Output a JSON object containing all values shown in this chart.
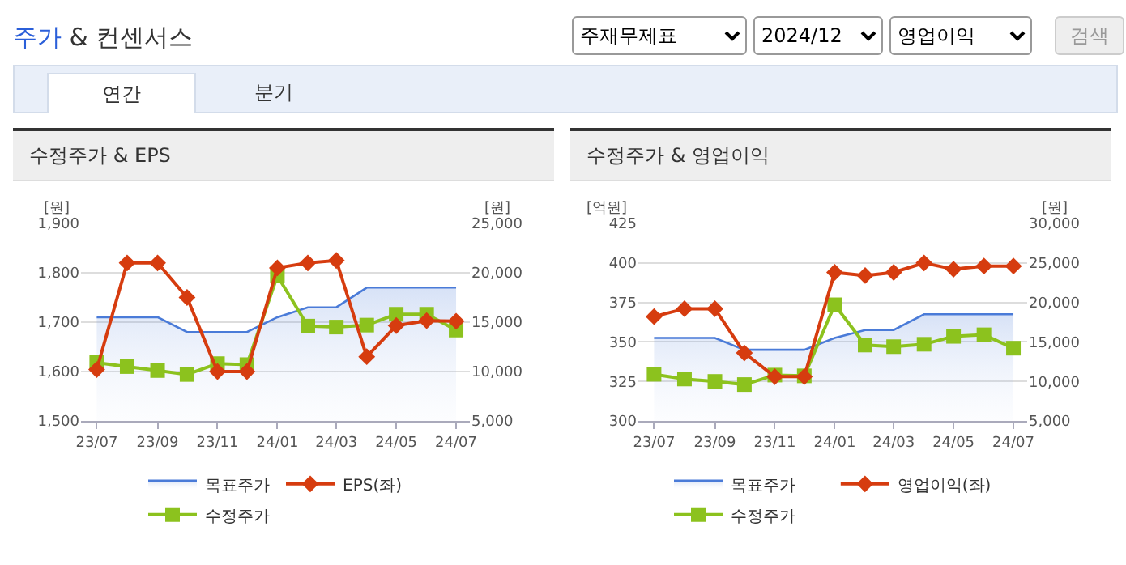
{
  "chart_data": [
    {
      "type": "line",
      "title": "수정주가 & EPS",
      "ylabel": "[원]",
      "y2label": "[원]",
      "annotations": [
        "주가 & 컨센서스",
        "주재무제표",
        "2024/12",
        "영업이익",
        "검색",
        "연간",
        "분기"
      ],
      "x": [
        "2023-07",
        "2023-08",
        "2023-09",
        "2023-10",
        "2023-11",
        "2023-12",
        "2024-01",
        "2024-02",
        "2024-03",
        "2024-04",
        "2024-05",
        "2024-06",
        "2024-07"
      ],
      "series": [
        {
          "name": "목표주가",
          "type": "area",
          "axis": "y2",
          "color": "#4a7bd8",
          "marker": "none",
          "values": [
            15500,
            15500,
            15500,
            14000,
            14000,
            14000,
            15500,
            16500,
            16500,
            18500,
            18500,
            18500,
            18500
          ]
        },
        {
          "name": "EPS(좌)",
          "type": "line",
          "color": "#d63c0f",
          "marker": "diamond",
          "values": [
            1604,
            1820,
            1820,
            1750,
            1600,
            1600,
            1810,
            1820,
            1825,
            1630,
            1693,
            1703,
            1702
          ]
        },
        {
          "name": "수정주가",
          "type": "line",
          "axis": "y2",
          "color": "#8cc21e",
          "marker": "square",
          "values": [
            10900,
            10500,
            10100,
            9700,
            10800,
            10700,
            19700,
            14600,
            14500,
            14700,
            15800,
            15800,
            14200
          ]
        }
      ],
      "xlim": [
        "2023-06-15",
        "2024-07-15"
      ],
      "xticks": [
        {
          "value": "2023-07",
          "label": "23/07"
        },
        {
          "value": "2023-09",
          "label": "23/09"
        },
        {
          "value": "2023-11",
          "label": "23/11"
        },
        {
          "value": "2024-01",
          "label": "24/01"
        },
        {
          "value": "2024-03",
          "label": "24/03"
        },
        {
          "value": "2024-05",
          "label": "24/05"
        },
        {
          "value": "2024-07",
          "label": "24/07"
        }
      ],
      "ylim": [
        1500,
        1900
      ],
      "yticks": [
        {
          "value": 1500,
          "label": "1,500"
        },
        {
          "value": 1600,
          "label": "1,600"
        },
        {
          "value": 1700,
          "label": "1,700"
        },
        {
          "value": 1800,
          "label": "1,800"
        },
        {
          "value": 1900,
          "label": "1,900"
        }
      ],
      "y2lim": [
        5000,
        25000
      ],
      "y2ticks": [
        {
          "value": 5000,
          "label": "5,000"
        },
        {
          "value": 10000,
          "label": "10,000"
        },
        {
          "value": 15000,
          "label": "15,000"
        },
        {
          "value": 20000,
          "label": "20,000"
        },
        {
          "value": 25000,
          "label": "25,000"
        }
      ],
      "grid": "y",
      "legend": "bottom"
    },
    {
      "type": "line",
      "title": "수정주가 & 영업이익",
      "ylabel": "[억원]",
      "y2label": "[원]",
      "x": [
        "2023-07",
        "2023-08",
        "2023-09",
        "2023-10",
        "2023-11",
        "2023-12",
        "2024-01",
        "2024-02",
        "2024-03",
        "2024-04",
        "2024-05",
        "2024-06",
        "2024-07"
      ],
      "series": [
        {
          "name": "목표주가",
          "type": "area",
          "axis": "y2",
          "color": "#4a7bd8",
          "marker": "none",
          "values": [
            15500,
            15500,
            15500,
            14000,
            14000,
            14000,
            15500,
            16500,
            16500,
            18500,
            18500,
            18500,
            18500
          ]
        },
        {
          "name": "영업이익(좌)",
          "type": "line",
          "color": "#d63c0f",
          "marker": "diamond",
          "values": [
            366,
            371,
            371,
            343,
            328,
            328,
            394,
            392,
            394,
            400,
            396,
            398,
            398
          ]
        },
        {
          "name": "수정주가",
          "type": "line",
          "axis": "y2",
          "color": "#8cc21e",
          "marker": "square",
          "values": [
            10900,
            10300,
            10000,
            9600,
            10800,
            10700,
            19700,
            14600,
            14400,
            14700,
            15700,
            15900,
            14200
          ]
        }
      ],
      "xlim": [
        "2023-06-15",
        "2024-07-15"
      ],
      "xticks": [
        {
          "value": "2023-07",
          "label": "23/07"
        },
        {
          "value": "2023-09",
          "label": "23/09"
        },
        {
          "value": "2023-11",
          "label": "23/11"
        },
        {
          "value": "2024-01",
          "label": "24/01"
        },
        {
          "value": "2024-03",
          "label": "24/03"
        },
        {
          "value": "2024-05",
          "label": "24/05"
        },
        {
          "value": "2024-07",
          "label": "24/07"
        }
      ],
      "ylim": [
        300,
        425
      ],
      "yticks": [
        300,
        325,
        350,
        375,
        400,
        425
      ],
      "y2lim": [
        5000,
        30000
      ],
      "y2ticks": [
        {
          "value": 5000,
          "label": "5,000"
        },
        {
          "value": 10000,
          "label": "10,000"
        },
        {
          "value": 15000,
          "label": "15,000"
        },
        {
          "value": 20000,
          "label": "20,000"
        },
        {
          "value": 25000,
          "label": "25,000"
        },
        {
          "value": 30000,
          "label": "30,000"
        }
      ],
      "grid": "y",
      "legend": "bottom"
    }
  ]
}
